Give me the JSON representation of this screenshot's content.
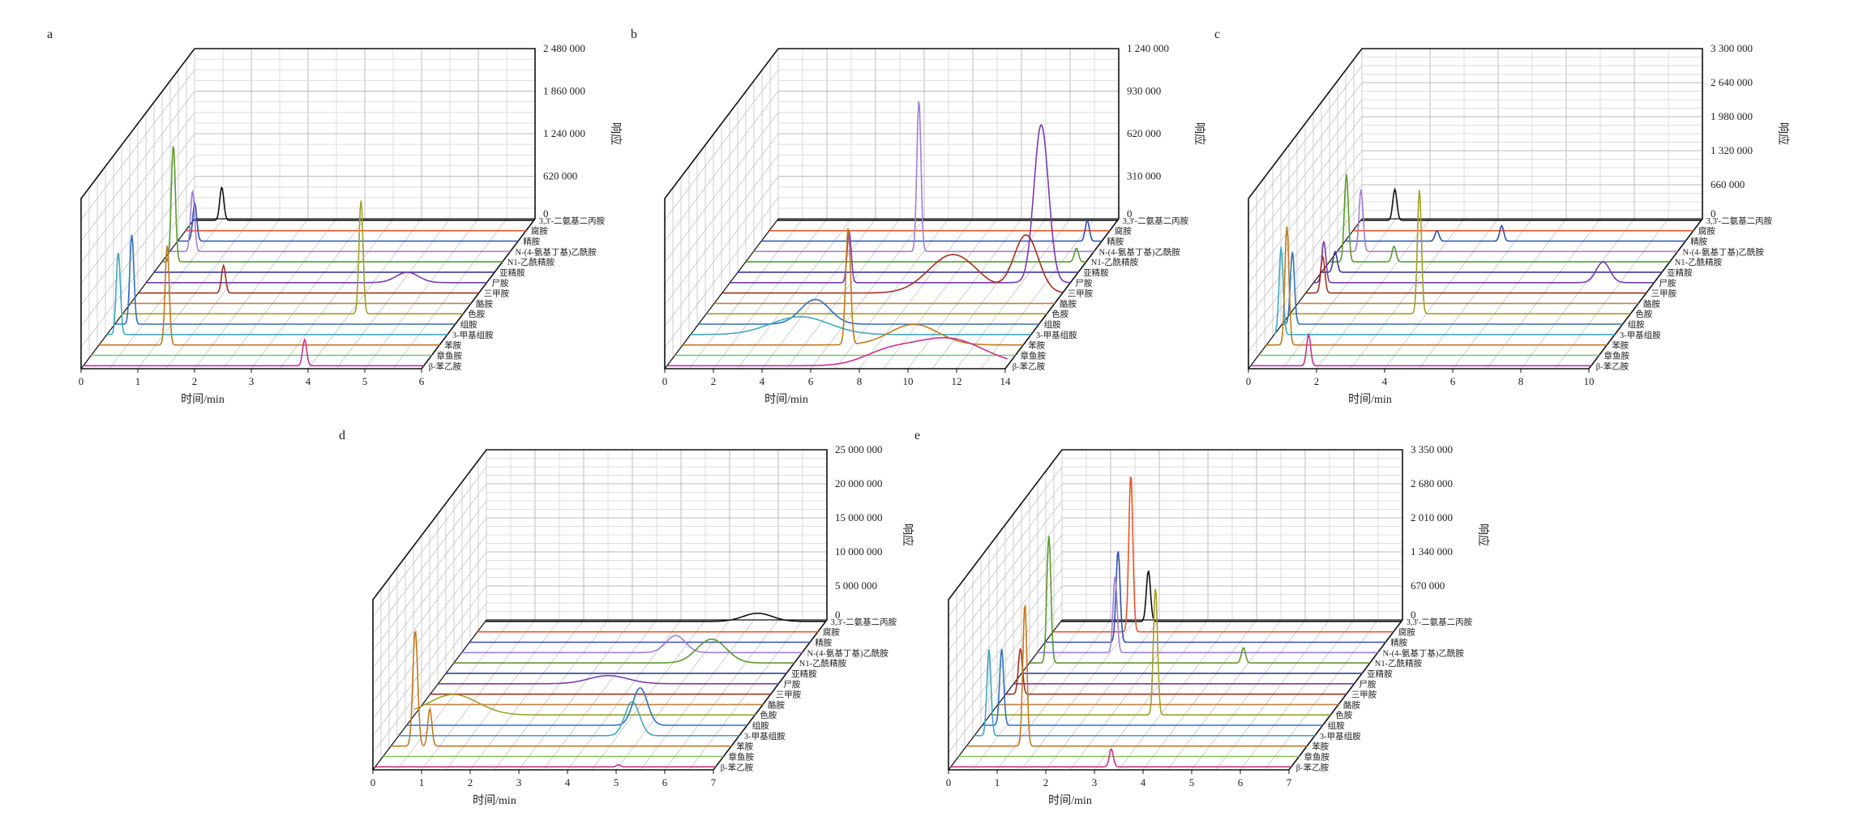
{
  "compounds": [
    "3,3'-二氨基二丙胺",
    "腐胺",
    "精胺",
    "N-(4-氨基丁基)乙酰胺",
    "N1-乙酰精胺",
    "亚精胺",
    "尸胺",
    "三甲胺",
    "酪胺",
    "色胺",
    "组胺",
    "3-甲基组胺",
    "苯胺",
    "章鱼胺",
    "β-苯乙胺"
  ],
  "series_colors": [
    "#111111",
    "#e8562a",
    "#3050b0",
    "#a07fd6",
    "#5a9a30",
    "#3a3a9a",
    "#7a3ab0",
    "#a03020",
    "#c08040",
    "#a0a028",
    "#3070c0",
    "#40a8c0",
    "#c07a20",
    "#80c060",
    "#c83090"
  ],
  "chart_data": [
    {
      "type": "line",
      "panel_label": "a",
      "xlabel": "时间/min",
      "ylabel": "响应",
      "xlim": [
        0,
        6
      ],
      "ylim": [
        0,
        2480000
      ],
      "xticks": [
        "0",
        "1",
        "2",
        "3",
        "4",
        "5",
        "6"
      ],
      "yticks": [
        "0",
        "620 000",
        "1 240 000",
        "1 860 000",
        "2 480 000"
      ],
      "peaks": [
        [
          [
            0.5,
            480000
          ]
        ],
        [],
        [
          [
            0.3,
            550000
          ]
        ],
        [
          [
            0.4,
            880000
          ]
        ],
        [
          [
            0.2,
            1700000
          ]
        ],
        [],
        [
          [
            4.6,
            150000,
            0.2
          ]
        ],
        [
          [
            1.5,
            400000
          ]
        ],
        [],
        [
          [
            4.2,
            1650000
          ]
        ],
        [
          [
            0.3,
            1300000
          ]
        ],
        [
          [
            0.2,
            1200000
          ]
        ],
        [
          [
            1.2,
            1450000
          ]
        ],
        [],
        [
          [
            3.9,
            380000
          ]
        ]
      ]
    },
    {
      "type": "line",
      "panel_label": "b",
      "xlabel": "时间/min",
      "ylabel": "响应",
      "xlim": [
        0,
        14
      ],
      "ylim": [
        0,
        1240000
      ],
      "xticks": [
        "0",
        "2",
        "4",
        "6",
        "8",
        "10",
        "12",
        "14"
      ],
      "yticks": [
        "0",
        "310 000",
        "620 000",
        "930 000",
        "1 240 000"
      ],
      "peaks": [
        [],
        [],
        [
          [
            13.4,
            150000
          ]
        ],
        [
          [
            6.8,
            1100000
          ]
        ],
        [
          [
            13.6,
            100000
          ]
        ],
        [],
        [
          [
            4.9,
            380000
          ],
          [
            12.8,
            1150000,
            0.3
          ]
        ],
        [
          [
            9.5,
            280000,
            1.0
          ],
          [
            12.5,
            420000,
            0.5
          ]
        ],
        [],
        [],
        [
          [
            4.8,
            180000,
            0.6
          ]
        ],
        [
          [
            4.5,
            130000,
            1.2
          ]
        ],
        [
          [
            6.8,
            850000,
            0.1
          ],
          [
            9.5,
            150000,
            1.0
          ]
        ],
        [],
        [
          [
            11.5,
            200000,
            1.5
          ],
          [
            9.0,
            80000,
            1.0
          ]
        ]
      ]
    },
    {
      "type": "line",
      "panel_label": "c",
      "xlabel": "时间/min",
      "ylabel": "响应",
      "xlim": [
        0,
        10
      ],
      "ylim": [
        0,
        3300000
      ],
      "xticks": [
        "0",
        "2",
        "4",
        "6",
        "8",
        "10"
      ],
      "yticks": [
        "0",
        "660 000",
        "1 320 000",
        "1 980 000",
        "2 640 000",
        "3 300 000"
      ],
      "peaks": [
        [
          [
            1.0,
            600000
          ]
        ],
        [],
        [
          [
            2.7,
            200000
          ],
          [
            4.6,
            300000
          ]
        ],
        [
          [
            0.7,
            1200000
          ]
        ],
        [
          [
            0.5,
            1700000
          ],
          [
            1.9,
            300000
          ]
        ],
        [
          [
            0.4,
            400000
          ]
        ],
        [
          [
            0.3,
            800000
          ],
          [
            8.5,
            400000,
            0.2
          ]
        ],
        [
          [
            0.5,
            700000
          ]
        ],
        [],
        [
          [
            3.8,
            2400000
          ]
        ],
        [
          [
            0.3,
            1400000
          ]
        ],
        [
          [
            0.2,
            1700000
          ]
        ],
        [
          [
            0.6,
            2300000
          ]
        ],
        [],
        [
          [
            1.7,
            600000
          ]
        ]
      ]
    },
    {
      "type": "line",
      "panel_label": "d",
      "xlabel": "时间/min",
      "ylabel": "响应",
      "xlim": [
        0,
        7
      ],
      "ylim": [
        0,
        25000000
      ],
      "xticks": [
        "0",
        "1",
        "2",
        "3",
        "4",
        "5",
        "6",
        "7"
      ],
      "yticks": [
        "0",
        "5 000 000",
        "10 000 000",
        "15 000 000",
        "20 000 000",
        "25 000 000"
      ],
      "peaks": [
        [
          [
            5.6,
            1200000,
            0.3
          ]
        ],
        [],
        [],
        [
          [
            4.4,
            2500000,
            0.2
          ]
        ],
        [
          [
            5.3,
            3500000,
            0.3
          ]
        ],
        [],
        [
          [
            3.5,
            1200000,
            0.4
          ]
        ],
        [],
        [],
        [
          [
            0.8,
            3000000,
            0.5
          ]
        ],
        [
          [
            4.8,
            5500000,
            0.15
          ]
        ],
        [
          [
            4.8,
            5000000,
            0.15
          ]
        ],
        [
          [
            0.5,
            17000000,
            0.05
          ],
          [
            0.8,
            5500000
          ]
        ],
        [],
        [
          [
            5.0,
            300000
          ]
        ]
      ]
    },
    {
      "type": "line",
      "panel_label": "e",
      "xlabel": "时间/min",
      "ylabel": "响应",
      "xlim": [
        0,
        7
      ],
      "ylim": [
        0,
        3350000
      ],
      "xticks": [
        "0",
        "1",
        "2",
        "3",
        "4",
        "5",
        "6",
        "7"
      ],
      "yticks": [
        "0",
        "670 000",
        "1 340 000",
        "2 010 000",
        "2 680 000",
        "3 350 000"
      ],
      "peaks": [
        [
          [
            1.8,
            1000000
          ]
        ],
        [
          [
            1.6,
            3100000
          ]
        ],
        [
          [
            1.5,
            1800000
          ]
        ],
        [
          [
            1.6,
            1500000
          ]
        ],
        [
          [
            0.4,
            2500000
          ],
          [
            4.4,
            300000
          ]
        ],
        [],
        [],
        [
          [
            0.3,
            900000
          ]
        ],
        [],
        [
          [
            3.4,
            2500000
          ]
        ],
        [
          [
            0.4,
            1500000
          ]
        ],
        [
          [
            0.3,
            1700000
          ]
        ],
        [
          [
            1.2,
            2800000
          ]
        ],
        [],
        [
          [
            3.3,
            350000
          ]
        ]
      ]
    }
  ]
}
